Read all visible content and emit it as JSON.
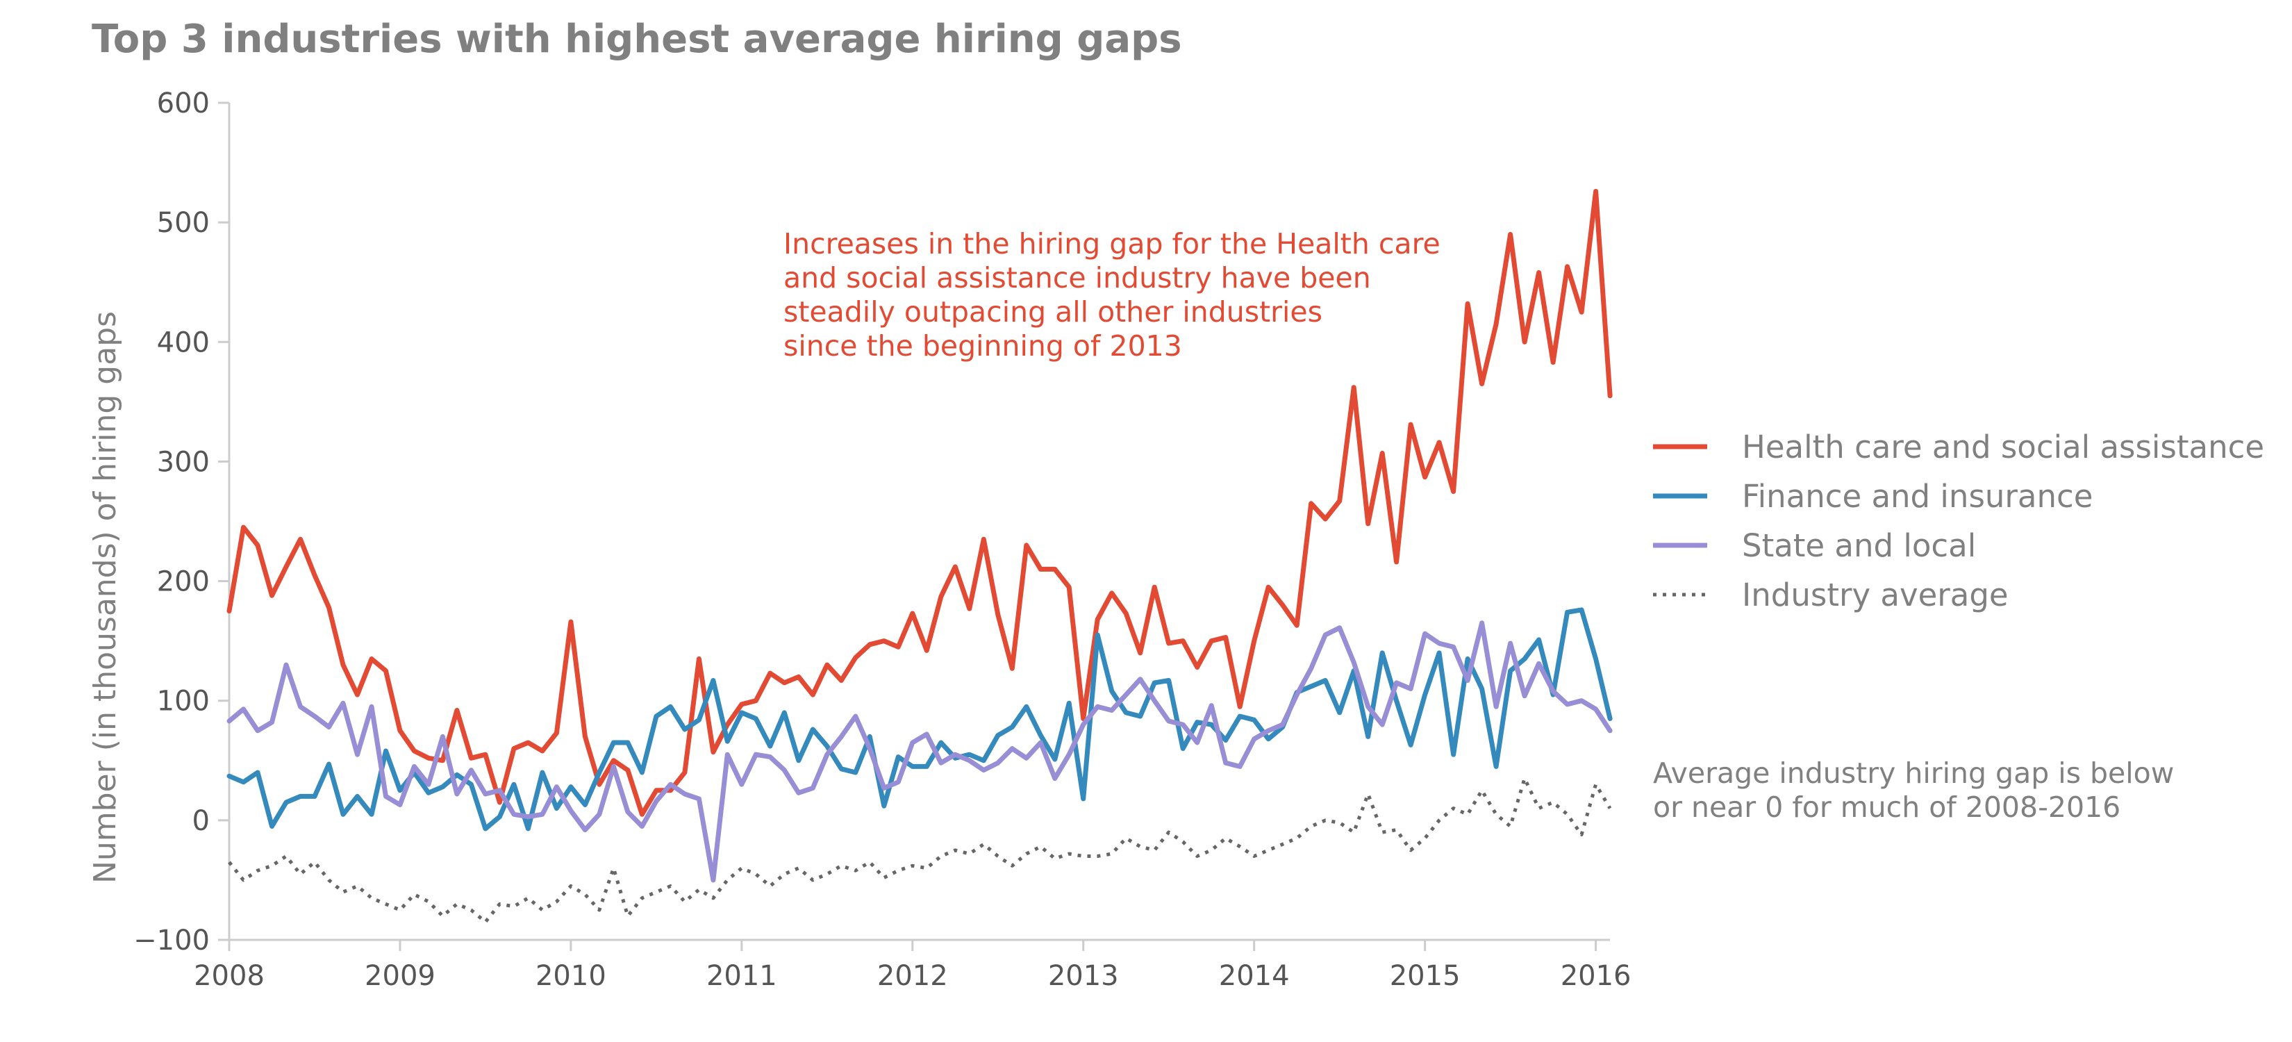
{
  "chart_data": {
    "type": "line",
    "title": "Top 3 industries with highest average hiring gaps",
    "xlabel": "",
    "ylabel": "Number (in thousands) of hiring gaps",
    "xlim": [
      2008.0,
      2016.083
    ],
    "ylim": [
      -100,
      600
    ],
    "xticks": [
      2008,
      2009,
      2010,
      2011,
      2012,
      2013,
      2014,
      2015,
      2016
    ],
    "yticks": [
      -100,
      0,
      100,
      200,
      300,
      400,
      500,
      600
    ],
    "xtick_labels": [
      "2008",
      "2009",
      "2010",
      "2011",
      "2012",
      "2013",
      "2014",
      "2015",
      "2016"
    ],
    "ytick_labels": [
      "−100",
      "0",
      "100",
      "200",
      "300",
      "400",
      "500",
      "600"
    ],
    "grid": false,
    "legend_position": "right",
    "x_start": "2008-01",
    "x_step": "1 month",
    "series": [
      {
        "name": "Health care and social assistance",
        "color": "#e24a33",
        "style": "solid",
        "values": [
          175,
          245,
          230,
          188,
          212,
          235,
          205,
          178,
          130,
          105,
          135,
          125,
          75,
          58,
          52,
          50,
          92,
          52,
          55,
          15,
          60,
          65,
          58,
          73,
          166,
          70,
          30,
          50,
          42,
          5,
          25,
          25,
          40,
          135,
          57,
          80,
          97,
          100,
          123,
          115,
          120,
          105,
          130,
          117,
          136,
          147,
          150,
          145,
          173,
          142,
          187,
          212,
          177,
          235,
          172,
          127,
          230,
          210,
          210,
          195,
          85,
          168,
          190,
          173,
          140,
          195,
          148,
          150,
          128,
          150,
          153,
          95,
          150,
          195,
          180,
          163,
          265,
          252,
          267,
          362,
          248,
          307,
          216,
          331,
          287,
          316,
          275,
          432,
          365,
          415,
          490,
          400,
          458,
          383,
          463,
          425,
          526,
          355
        ]
      },
      {
        "name": "Finance and insurance",
        "color": "#348abd",
        "style": "solid",
        "values": [
          37,
          32,
          40,
          -5,
          15,
          20,
          20,
          47,
          5,
          20,
          5,
          58,
          25,
          40,
          23,
          28,
          38,
          30,
          -7,
          3,
          30,
          -7,
          40,
          10,
          28,
          13,
          40,
          65,
          65,
          40,
          87,
          95,
          76,
          84,
          117,
          66,
          90,
          85,
          62,
          90,
          50,
          76,
          62,
          43,
          40,
          70,
          12,
          53,
          45,
          45,
          65,
          52,
          55,
          50,
          71,
          78,
          95,
          71,
          51,
          98,
          18,
          155,
          108,
          90,
          87,
          115,
          117,
          60,
          82,
          80,
          67,
          87,
          84,
          68,
          78,
          107,
          112,
          117,
          90,
          125,
          70,
          140,
          100,
          63,
          105,
          140,
          55,
          135,
          110,
          45,
          125,
          135,
          151,
          105,
          174,
          176,
          135,
          85
        ]
      },
      {
        "name": "State and local",
        "color": "#988ed5",
        "style": "solid",
        "values": [
          83,
          93,
          75,
          82,
          130,
          95,
          87,
          78,
          98,
          55,
          95,
          20,
          13,
          45,
          30,
          70,
          22,
          42,
          22,
          25,
          5,
          3,
          5,
          28,
          8,
          -8,
          5,
          45,
          7,
          -5,
          16,
          30,
          22,
          18,
          -50,
          55,
          30,
          55,
          53,
          42,
          23,
          27,
          55,
          70,
          87,
          60,
          27,
          32,
          65,
          72,
          48,
          55,
          50,
          42,
          48,
          60,
          52,
          65,
          35,
          55,
          80,
          95,
          92,
          105,
          118,
          100,
          83,
          80,
          65,
          96,
          48,
          45,
          68,
          75,
          80,
          105,
          127,
          155,
          161,
          132,
          95,
          80,
          115,
          110,
          156,
          148,
          145,
          117,
          165,
          95,
          148,
          104,
          131,
          108,
          97,
          100,
          93,
          75
        ]
      },
      {
        "name": "Industry average",
        "color": "#666666",
        "style": "dotted",
        "values": [
          -35,
          -50,
          -42,
          -38,
          -30,
          -45,
          -35,
          -50,
          -60,
          -55,
          -65,
          -70,
          -75,
          -62,
          -68,
          -80,
          -70,
          -75,
          -85,
          -70,
          -72,
          -65,
          -75,
          -68,
          -55,
          -62,
          -75,
          -40,
          -80,
          -65,
          -60,
          -55,
          -68,
          -58,
          -65,
          -50,
          -40,
          -45,
          -55,
          -45,
          -40,
          -50,
          -45,
          -38,
          -42,
          -35,
          -48,
          -42,
          -38,
          -40,
          -30,
          -25,
          -28,
          -20,
          -30,
          -38,
          -28,
          -22,
          -32,
          -28,
          -30,
          -30,
          -28,
          -15,
          -22,
          -25,
          -10,
          -18,
          -30,
          -25,
          -15,
          -22,
          -30,
          -25,
          -20,
          -15,
          -5,
          0,
          -2,
          -10,
          22,
          -10,
          -8,
          -25,
          -15,
          0,
          10,
          5,
          25,
          5,
          -5,
          35,
          10,
          15,
          5,
          -12,
          30,
          10
        ]
      }
    ],
    "annotations": [
      {
        "lines": [
          "Increases in the hiring gap for the Health care",
          "and social assistance industry have been",
          "steadily outpacing all other industries",
          "since the beginning of 2013"
        ],
        "color": "#e24a33"
      },
      {
        "lines": [
          "Average industry hiring gap is below",
          "or near 0 for much of 2008-2016"
        ],
        "color": "#808080"
      }
    ]
  }
}
